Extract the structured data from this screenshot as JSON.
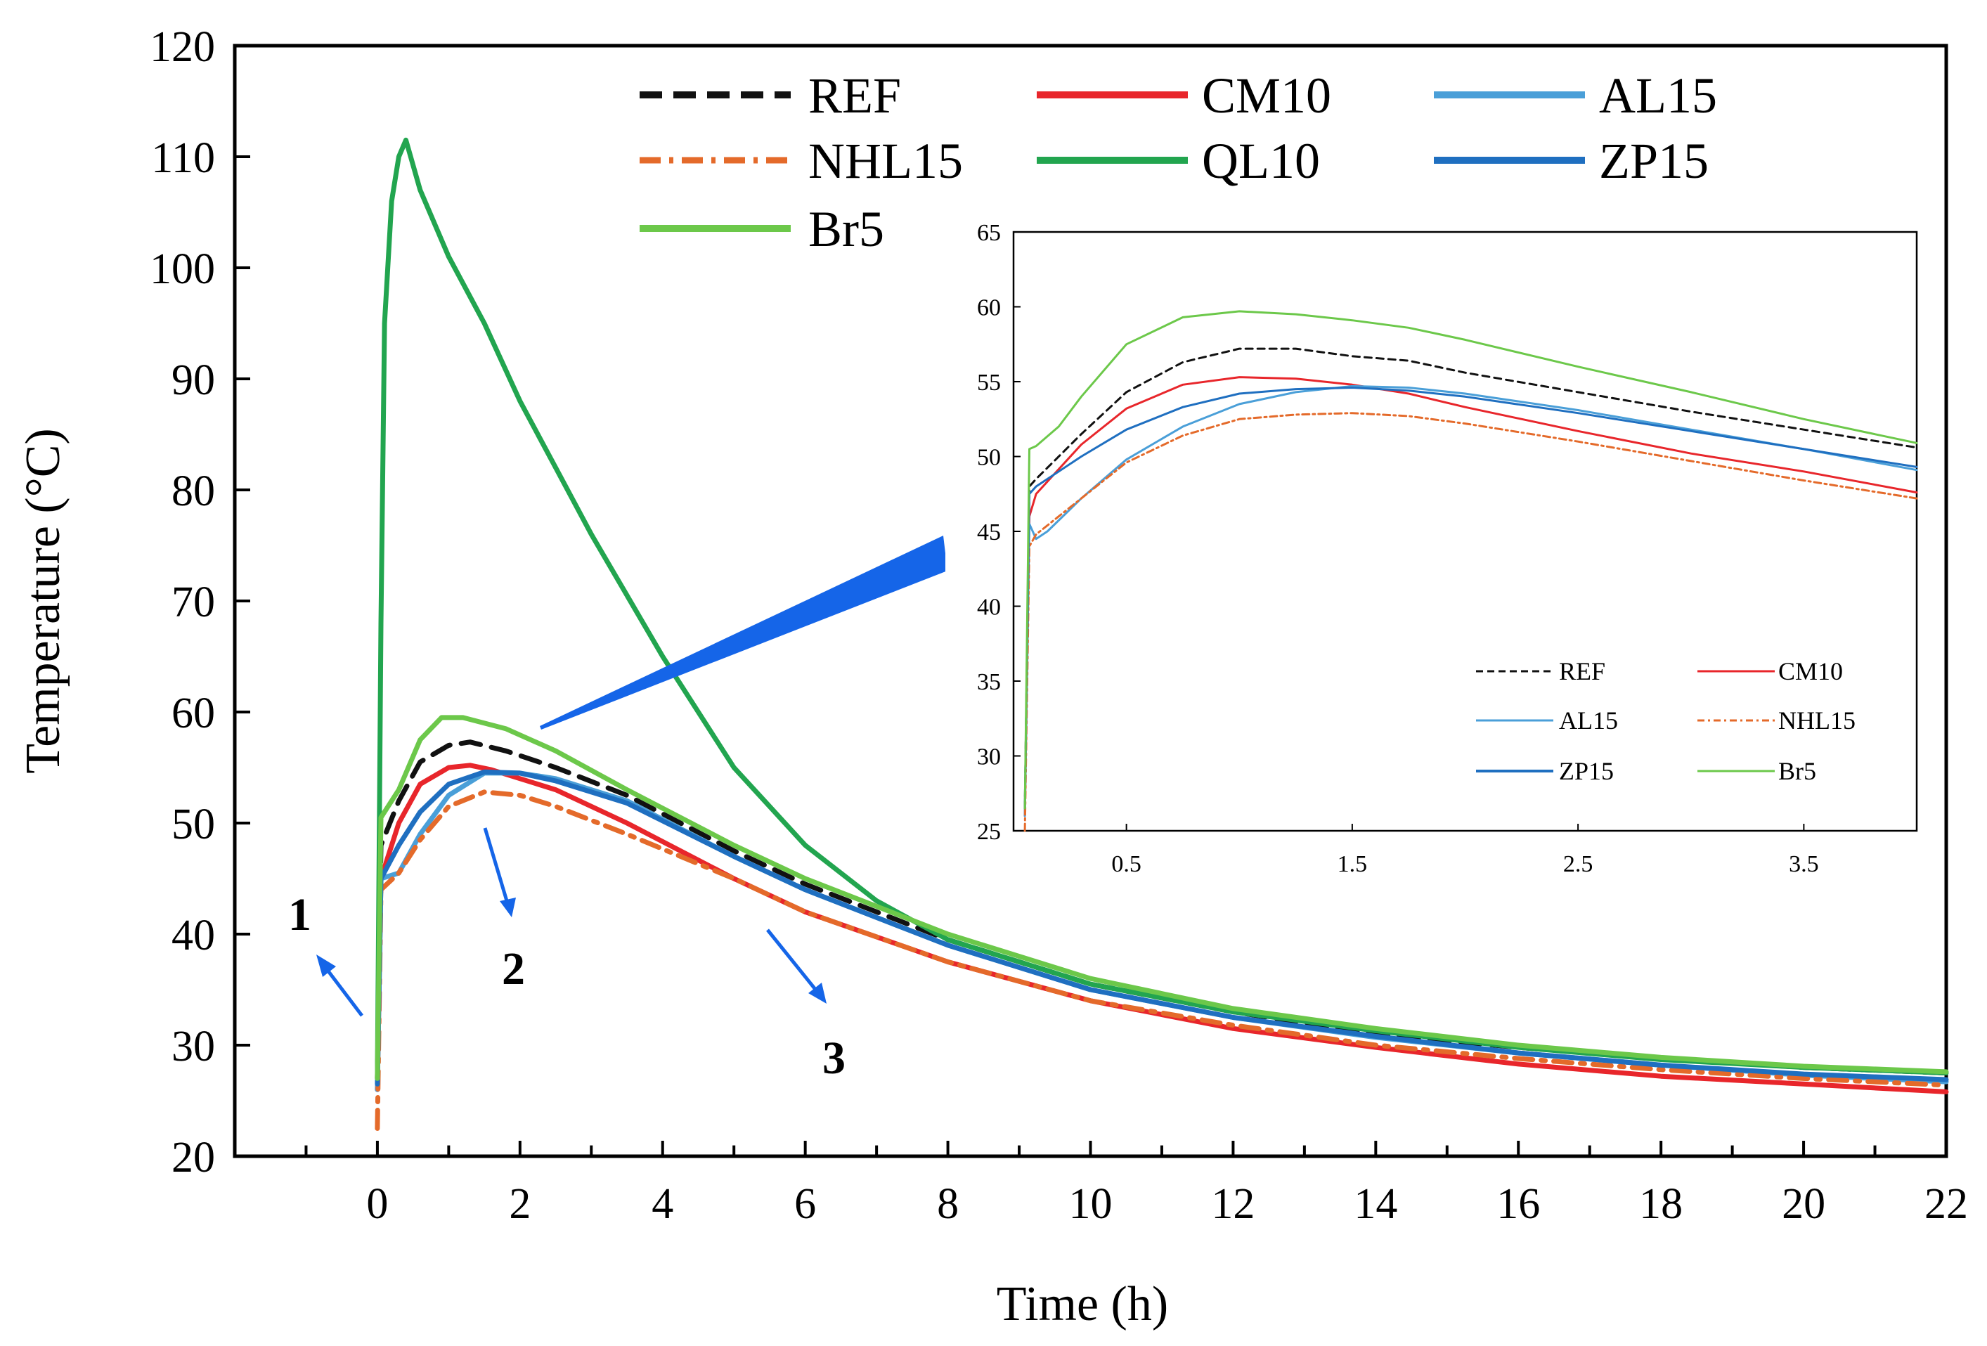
{
  "colors": {
    "REF": "#111111",
    "CM10": "#e8262b",
    "AL15": "#4a9fd8",
    "NHL15": "#e46a2a",
    "QL10": "#22a54f",
    "ZP15": "#1f6fc0",
    "Br5": "#6cc84a",
    "arrow": "#1565e8"
  },
  "chart_data": [
    {
      "id": "main",
      "type": "line",
      "xlabel": "Time (h)",
      "ylabel": "Temperature (°C)",
      "xlim": [
        -2,
        22
      ],
      "ylim": [
        20,
        120
      ],
      "x_ticks": [
        0,
        2,
        4,
        6,
        8,
        10,
        12,
        14,
        16,
        18,
        20,
        22
      ],
      "y_ticks": [
        20,
        30,
        40,
        50,
        60,
        70,
        80,
        90,
        100,
        110,
        120
      ],
      "legend": {
        "position": "top",
        "entries": [
          {
            "name": "REF",
            "style": "dashed"
          },
          {
            "name": "CM10",
            "style": "solid"
          },
          {
            "name": "AL15",
            "style": "solid"
          },
          {
            "name": "NHL15",
            "style": "dashdot"
          },
          {
            "name": "QL10",
            "style": "solid"
          },
          {
            "name": "ZP15",
            "style": "solid"
          },
          {
            "name": "Br5",
            "style": "solid"
          }
        ]
      },
      "annotations": [
        "1",
        "2",
        "3"
      ],
      "series": [
        {
          "name": "REF",
          "style": "dashed",
          "x": [
            0,
            0.05,
            0.3,
            0.6,
            1.0,
            1.3,
            1.8,
            2.5,
            3.5,
            5,
            6,
            8,
            10,
            12,
            14,
            16,
            18,
            20,
            22
          ],
          "y": [
            27,
            48,
            52,
            55.5,
            57,
            57.3,
            56.5,
            55,
            52.5,
            47.5,
            44.5,
            39.5,
            35.5,
            33,
            31,
            29.8,
            28.8,
            28,
            27.5
          ]
        },
        {
          "name": "CM10",
          "style": "solid",
          "x": [
            0,
            0.05,
            0.3,
            0.6,
            1.0,
            1.3,
            1.6,
            2.5,
            3.5,
            5,
            6,
            8,
            10,
            12,
            14,
            16,
            18,
            20,
            22
          ],
          "y": [
            26,
            45,
            50,
            53.5,
            55,
            55.2,
            54.8,
            53,
            50,
            45,
            42,
            37.5,
            34,
            31.5,
            29.8,
            28.3,
            27.2,
            26.5,
            25.8
          ]
        },
        {
          "name": "AL15",
          "style": "solid",
          "x": [
            0,
            0.05,
            0.3,
            0.6,
            1.0,
            1.5,
            2.0,
            2.5,
            3.5,
            5,
            6,
            8,
            10,
            12,
            14,
            16,
            18,
            20,
            22
          ],
          "y": [
            26,
            45,
            45.5,
            49,
            52.5,
            54.5,
            54.5,
            54,
            52,
            47,
            44,
            39,
            35,
            32.5,
            30.7,
            29.3,
            28.2,
            27.3,
            26.7
          ]
        },
        {
          "name": "NHL15",
          "style": "dashdot",
          "x": [
            0,
            0.05,
            0.3,
            0.6,
            1.0,
            1.5,
            2.0,
            2.5,
            3.5,
            5,
            6,
            8,
            10,
            12,
            14,
            16,
            18,
            20,
            22
          ],
          "y": [
            22.5,
            44,
            45.5,
            48.5,
            51.5,
            52.8,
            52.5,
            51.5,
            49,
            45,
            42,
            37.5,
            34,
            31.8,
            30,
            28.8,
            27.8,
            27,
            26.4
          ]
        },
        {
          "name": "QL10",
          "style": "solid",
          "x": [
            0,
            0.05,
            0.1,
            0.2,
            0.3,
            0.4,
            0.6,
            1.0,
            1.5,
            2.0,
            2.5,
            3.0,
            4.0,
            5,
            6,
            7,
            8,
            10,
            12,
            14,
            16,
            18,
            20,
            22
          ],
          "y": [
            27,
            68,
            95,
            106,
            110,
            111.5,
            107,
            101,
            95,
            88,
            82,
            76,
            65,
            55,
            48,
            43,
            39.5,
            35.5,
            33,
            31.3,
            29.8,
            28.7,
            28,
            27.5
          ]
        },
        {
          "name": "ZP15",
          "style": "solid",
          "x": [
            0,
            0.05,
            0.3,
            0.6,
            1.0,
            1.5,
            2.0,
            2.5,
            3.5,
            5,
            6,
            8,
            10,
            12,
            14,
            16,
            18,
            20,
            22
          ],
          "y": [
            26.5,
            45,
            48,
            51,
            53.5,
            54.6,
            54.5,
            53.8,
            51.8,
            47,
            44,
            39,
            35,
            32.5,
            30.8,
            29.3,
            28.2,
            27.4,
            26.9
          ]
        },
        {
          "name": "Br5",
          "style": "solid",
          "x": [
            0,
            0.05,
            0.3,
            0.6,
            0.9,
            1.2,
            1.8,
            2.5,
            3.5,
            5,
            6,
            8,
            10,
            12,
            14,
            16,
            18,
            20,
            22
          ],
          "y": [
            27,
            50.5,
            53,
            57.5,
            59.5,
            59.5,
            58.5,
            56.5,
            53,
            48,
            45,
            40,
            36,
            33.3,
            31.5,
            30,
            28.9,
            28.1,
            27.6
          ]
        }
      ]
    },
    {
      "id": "inset",
      "type": "line",
      "xlim": [
        0,
        4
      ],
      "ylim": [
        25,
        65
      ],
      "x_ticks": [
        0.5,
        1.5,
        2.5,
        3.5
      ],
      "y_ticks": [
        25,
        30,
        35,
        40,
        45,
        50,
        55,
        60,
        65
      ],
      "legend": {
        "position": "bottom-right",
        "entries": [
          {
            "name": "REF",
            "style": "dashed"
          },
          {
            "name": "CM10",
            "style": "solid"
          },
          {
            "name": "AL15",
            "style": "solid"
          },
          {
            "name": "NHL15",
            "style": "dashdot"
          },
          {
            "name": "ZP15",
            "style": "solid"
          },
          {
            "name": "Br5",
            "style": "solid"
          }
        ]
      },
      "series": [
        {
          "name": "REF",
          "style": "dashed",
          "x": [
            0.05,
            0.07,
            0.1,
            0.3,
            0.5,
            0.75,
            1.0,
            1.25,
            1.5,
            1.75,
            2.0,
            2.5,
            3.0,
            3.5,
            4.0
          ],
          "y": [
            26.5,
            48,
            48.5,
            51.5,
            54.3,
            56.3,
            57.2,
            57.2,
            56.7,
            56.4,
            55.6,
            54.3,
            53,
            51.8,
            50.6
          ]
        },
        {
          "name": "CM10",
          "style": "solid",
          "x": [
            0.05,
            0.07,
            0.1,
            0.3,
            0.5,
            0.75,
            1.0,
            1.25,
            1.5,
            1.75,
            2.0,
            2.5,
            3.0,
            3.5,
            4.0
          ],
          "y": [
            26,
            46,
            47.5,
            50.8,
            53.2,
            54.8,
            55.3,
            55.2,
            54.8,
            54.2,
            53.3,
            51.7,
            50.2,
            49,
            47.6
          ]
        },
        {
          "name": "AL15",
          "style": "solid",
          "x": [
            0.05,
            0.07,
            0.1,
            0.15,
            0.3,
            0.5,
            0.75,
            1.0,
            1.25,
            1.5,
            1.75,
            2.0,
            2.5,
            3.0,
            3.5,
            4.0
          ],
          "y": [
            26,
            45.5,
            44.5,
            45,
            47.2,
            49.8,
            52,
            53.5,
            54.3,
            54.7,
            54.6,
            54.2,
            53.1,
            51.8,
            50.5,
            49.1
          ]
        },
        {
          "name": "NHL15",
          "style": "dashdot",
          "x": [
            0.05,
            0.07,
            0.1,
            0.3,
            0.5,
            0.75,
            1.0,
            1.25,
            1.5,
            1.75,
            2.0,
            2.5,
            3.0,
            3.5,
            4.0
          ],
          "y": [
            25,
            44,
            44.8,
            47.2,
            49.6,
            51.4,
            52.5,
            52.8,
            52.9,
            52.7,
            52.2,
            51,
            49.7,
            48.4,
            47.2
          ]
        },
        {
          "name": "ZP15",
          "style": "solid",
          "x": [
            0.05,
            0.07,
            0.1,
            0.3,
            0.5,
            0.75,
            1.0,
            1.25,
            1.5,
            1.75,
            2.0,
            2.5,
            3.0,
            3.5,
            4.0
          ],
          "y": [
            26.5,
            47.5,
            48,
            50,
            51.8,
            53.3,
            54.2,
            54.5,
            54.6,
            54.4,
            54,
            52.9,
            51.7,
            50.5,
            49.3
          ]
        },
        {
          "name": "Br5",
          "style": "solid",
          "x": [
            0.05,
            0.07,
            0.1,
            0.2,
            0.3,
            0.5,
            0.75,
            1.0,
            1.25,
            1.5,
            1.75,
            2.0,
            2.5,
            3.0,
            3.5,
            4.0
          ],
          "y": [
            26.5,
            50.5,
            50.7,
            52,
            54,
            57.5,
            59.3,
            59.7,
            59.5,
            59.1,
            58.6,
            57.8,
            56,
            54.3,
            52.5,
            50.9
          ]
        }
      ]
    }
  ]
}
